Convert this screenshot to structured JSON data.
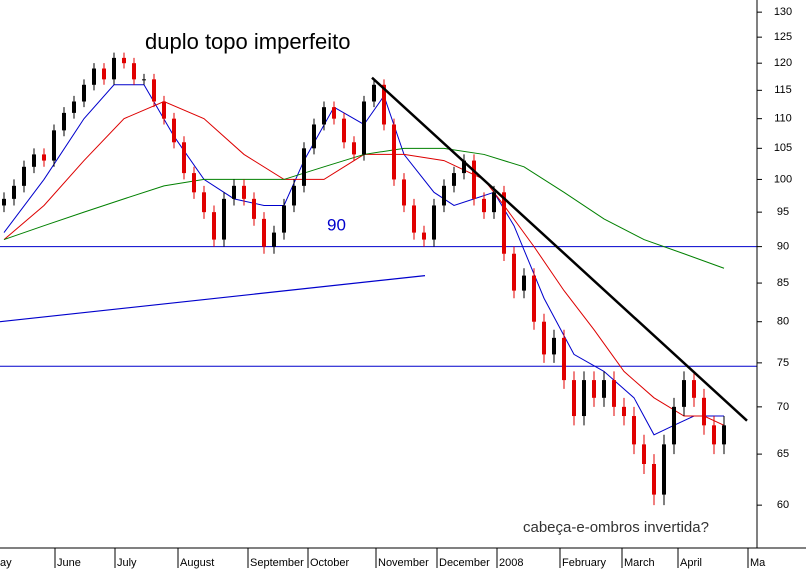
{
  "chart_data": {
    "type": "candlestick",
    "title": "duplo topo imperfeito",
    "annotations": [
      "90",
      "cabeça-e-ombros invertida?"
    ],
    "log_scale": true,
    "ylim": [
      56.1,
      132.5
    ],
    "yticks": [
      60,
      65,
      70,
      75,
      80,
      85,
      90,
      95,
      100,
      105,
      110,
      115,
      120,
      125,
      130
    ],
    "xlim": [
      -0.4,
      75.3
    ],
    "xticks": [
      {
        "value": -0.6,
        "label": "ay"
      },
      {
        "value": 5.1,
        "label": "June"
      },
      {
        "value": 11.1,
        "label": "July"
      },
      {
        "value": 17.4,
        "label": "August"
      },
      {
        "value": 24.4,
        "label": "September"
      },
      {
        "value": 30.4,
        "label": "October"
      },
      {
        "value": 37.2,
        "label": "November"
      },
      {
        "value": 43.3,
        "label": "December"
      },
      {
        "value": 49.3,
        "label": "2008"
      },
      {
        "value": 55.6,
        "label": "February"
      },
      {
        "value": 61.8,
        "label": "March"
      },
      {
        "value": 67.4,
        "label": "April"
      },
      {
        "value": 74.4,
        "label": "Ma"
      }
    ],
    "up_color": "#000000",
    "down_color": "#e00000",
    "x": [
      0,
      1,
      2,
      3,
      4,
      5,
      6,
      7,
      8,
      9,
      10,
      11,
      12,
      13,
      14,
      15,
      16,
      17,
      18,
      19,
      20,
      21,
      22,
      23,
      24,
      25,
      26,
      27,
      28,
      29,
      30,
      31,
      32,
      33,
      34,
      35,
      36,
      37,
      38,
      39,
      40,
      41,
      42,
      43,
      44,
      45,
      46,
      47,
      48,
      49,
      50,
      51,
      52,
      53,
      54,
      55,
      56,
      57,
      58,
      59,
      60,
      61,
      62,
      63,
      64,
      65,
      66,
      67,
      68,
      69,
      70,
      71,
      72
    ],
    "open": [
      96,
      97,
      99,
      102,
      104,
      103,
      108,
      111,
      113,
      116,
      119,
      117,
      121,
      120,
      117,
      117,
      113,
      110,
      106,
      101,
      98,
      95,
      91,
      97,
      99,
      97,
      94,
      90,
      92,
      96,
      99,
      105,
      109,
      112,
      110,
      106,
      104,
      113,
      116,
      109,
      100,
      96,
      92,
      91,
      96,
      99,
      101,
      103,
      97,
      95,
      98,
      89,
      84,
      86,
      80,
      76,
      78,
      73,
      69,
      73,
      71,
      73,
      70,
      69,
      66,
      64,
      61,
      66,
      70,
      73,
      71,
      68,
      66
    ],
    "high": [
      98,
      100,
      103,
      105,
      105,
      109,
      112,
      114,
      117,
      120,
      120,
      122,
      122,
      121,
      118,
      118,
      114,
      111,
      107,
      102,
      99,
      96,
      98,
      100,
      100,
      98,
      95,
      93,
      97,
      100,
      106,
      110,
      113,
      113,
      111,
      107,
      114,
      117,
      117,
      110,
      101,
      97,
      93,
      97,
      100,
      102,
      104,
      104,
      98,
      99,
      99,
      90,
      87,
      87,
      81,
      79,
      79,
      74,
      74,
      74,
      74,
      74,
      71,
      70,
      67,
      65,
      67,
      71,
      74,
      74,
      72,
      69,
      69
    ],
    "low": [
      95,
      96,
      98,
      101,
      102,
      102,
      107,
      110,
      112,
      115,
      116,
      116,
      119,
      116,
      116,
      112,
      109,
      105,
      100,
      97,
      94,
      90,
      90,
      96,
      96,
      93,
      89,
      89,
      91,
      95,
      98,
      104,
      108,
      109,
      105,
      103,
      103,
      112,
      108,
      99,
      95,
      91,
      90,
      90,
      95,
      98,
      100,
      96,
      94,
      94,
      88,
      83,
      83,
      79,
      75,
      75,
      72,
      68,
      68,
      70,
      70,
      69,
      68,
      65,
      63,
      60,
      60,
      65,
      69,
      70,
      67,
      65,
      65
    ],
    "close": [
      97,
      99,
      102,
      104,
      103,
      108,
      111,
      113,
      116,
      119,
      117,
      121,
      120,
      117,
      117,
      113,
      110,
      106,
      101,
      98,
      95,
      91,
      97,
      99,
      97,
      94,
      90,
      92,
      96,
      99,
      105,
      109,
      112,
      110,
      106,
      104,
      113,
      116,
      109,
      100,
      96,
      92,
      91,
      96,
      99,
      101,
      103,
      97,
      95,
      98,
      89,
      84,
      86,
      80,
      76,
      78,
      73,
      69,
      73,
      71,
      73,
      70,
      69,
      66,
      64,
      61,
      66,
      70,
      73,
      71,
      68,
      66,
      68
    ],
    "series": [
      {
        "color": "#0000cc",
        "x": [
          0,
          4,
          8,
          11,
          14,
          17,
          20,
          23,
          26,
          28,
          30,
          33,
          36,
          38,
          40,
          43,
          45,
          47,
          49,
          51,
          54,
          57,
          60,
          63,
          65,
          67,
          69,
          72
        ],
        "values": [
          92,
          100,
          110,
          116,
          116,
          107,
          100,
          97,
          96,
          96,
          103,
          112,
          109,
          114,
          104,
          98,
          96,
          97,
          98,
          93,
          83,
          76,
          74,
          71,
          67,
          68,
          69,
          69
        ]
      },
      {
        "color": "#dd0000",
        "x": [
          0,
          4,
          8,
          12,
          16,
          20,
          24,
          28,
          32,
          36,
          40,
          44,
          48,
          50,
          53,
          56,
          59,
          62,
          65,
          68,
          70,
          72
        ],
        "values": [
          91,
          96,
          103,
          110,
          113,
          110,
          104,
          100,
          100,
          104,
          104,
          103,
          100,
          96,
          90,
          84,
          79,
          74,
          71,
          69,
          69,
          68
        ]
      },
      {
        "color": "#008000",
        "x": [
          0,
          4,
          8,
          12,
          16,
          20,
          24,
          28,
          32,
          36,
          40,
          44,
          48,
          52,
          56,
          60,
          64,
          68,
          72
        ],
        "values": [
          91,
          93,
          95,
          97,
          99,
          100,
          100,
          100,
          102,
          104,
          105,
          105,
          104,
          102,
          98,
          94,
          91,
          89,
          87
        ]
      }
    ],
    "hlines": [
      {
        "value": 90,
        "color": "#0000cc"
      },
      {
        "value": 74.6,
        "color": "#0000cc"
      }
    ],
    "trendlines": [
      {
        "color": "#000000",
        "width": 2.5,
        "x": [
          36.8,
          74.3
        ],
        "values": [
          117.3,
          68.5
        ]
      },
      {
        "color": "#0000cc",
        "width": 1.2,
        "x": [
          -0.4,
          42.1
        ],
        "values": [
          80,
          86
        ]
      }
    ]
  }
}
